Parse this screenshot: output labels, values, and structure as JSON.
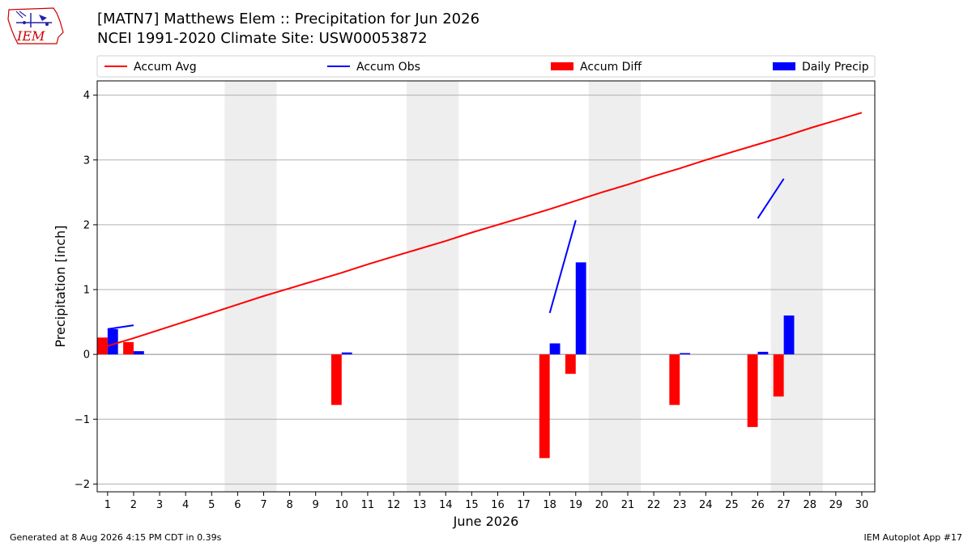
{
  "header": {
    "title_line1": "[MATN7] Matthews Elem :: Precipitation for Jun 2026",
    "title_line2": "NCEI 1991-2020 Climate Site: USW00053872"
  },
  "logo": {
    "icon": "iem-logo-icon",
    "text": "IEM"
  },
  "footer": {
    "generated": "Generated at 8 Aug 2026 4:15 PM CDT in 0.39s",
    "app": "IEM Autoplot App #17"
  },
  "colors": {
    "avg": "#ff0000",
    "obs": "#0000ff",
    "diff": "#ff0000",
    "daily": "#0000ff",
    "weekend": "#eeeeee",
    "grid": "#b0b0b0"
  },
  "chart_data": {
    "type": "bar",
    "title": "[MATN7] Matthews Elem :: Precipitation for Jun 2026",
    "xlabel": "June 2026",
    "ylabel": "Precipitation [inch]",
    "x_range": [
      0.6,
      30.5
    ],
    "ylim": [
      -2.12,
      4.22
    ],
    "yticks": [
      -2,
      -1,
      0,
      1,
      2,
      3,
      4
    ],
    "ytick_labels": [
      "−2",
      "−1",
      "0",
      "1",
      "2",
      "3",
      "4"
    ],
    "days": [
      1,
      2,
      3,
      4,
      5,
      6,
      7,
      8,
      9,
      10,
      11,
      12,
      13,
      14,
      15,
      16,
      17,
      18,
      19,
      20,
      21,
      22,
      23,
      24,
      25,
      26,
      27,
      28,
      29,
      30
    ],
    "grid": "horizontal",
    "legend_placement": "top",
    "legend": [
      {
        "label": "Accum Avg",
        "kind": "line",
        "color": "#ff0000"
      },
      {
        "label": "Accum Obs",
        "kind": "line",
        "color": "#0000ff"
      },
      {
        "label": "Accum Diff",
        "kind": "bar",
        "color": "#ff0000"
      },
      {
        "label": "Daily Precip",
        "kind": "bar",
        "color": "#0000ff"
      }
    ],
    "weekend_bands": [
      [
        5.5,
        7.5
      ],
      [
        12.5,
        14.5
      ],
      [
        19.5,
        21.5
      ],
      [
        26.5,
        28.5
      ]
    ],
    "series": [
      {
        "name": "Accum Avg",
        "type": "line",
        "values": [
          0.13,
          0.25,
          0.38,
          0.51,
          0.64,
          0.77,
          0.9,
          1.02,
          1.14,
          1.26,
          1.39,
          1.51,
          1.63,
          1.75,
          1.88,
          2.0,
          2.12,
          2.24,
          2.37,
          2.5,
          2.62,
          2.75,
          2.87,
          3.0,
          3.12,
          3.24,
          3.36,
          3.49,
          3.61,
          3.73
        ]
      },
      {
        "name": "Accum Obs",
        "type": "line",
        "segments": [
          [
            [
              1,
              0.39
            ],
            [
              2,
              0.45
            ]
          ],
          [
            [
              18,
              0.64
            ],
            [
              19,
              2.07
            ]
          ],
          [
            [
              26,
              2.1
            ],
            [
              27,
              2.71
            ]
          ]
        ]
      },
      {
        "name": "Accum Diff",
        "type": "bar",
        "points": [
          [
            1,
            0.26
          ],
          [
            2,
            0.19
          ],
          [
            10,
            -0.78
          ],
          [
            18,
            -1.6
          ],
          [
            19,
            -0.3
          ],
          [
            23,
            -0.78
          ],
          [
            26,
            -1.12
          ],
          [
            27,
            -0.65
          ]
        ]
      },
      {
        "name": "Daily Precip",
        "type": "bar",
        "points": [
          [
            1,
            0.39
          ],
          [
            2,
            0.05
          ],
          [
            10,
            0.03
          ],
          [
            18,
            0.17
          ],
          [
            19,
            1.42
          ],
          [
            23,
            0.02
          ],
          [
            26,
            0.04
          ],
          [
            27,
            0.6
          ]
        ]
      }
    ]
  }
}
